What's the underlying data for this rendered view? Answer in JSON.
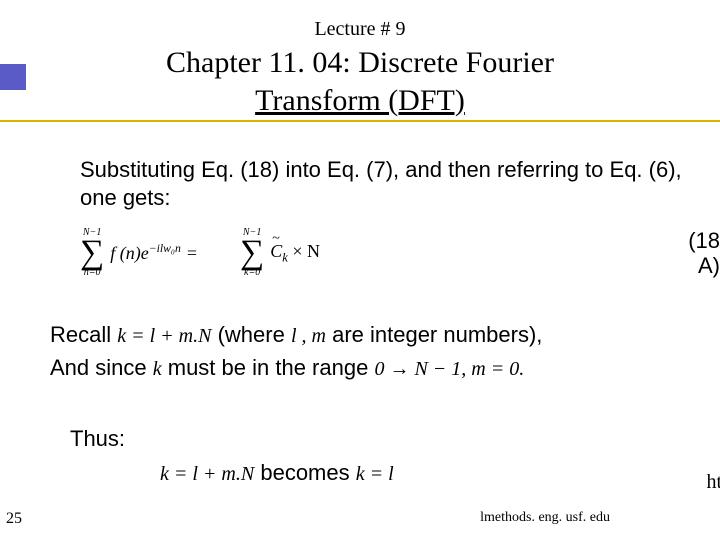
{
  "lecture": "Lecture # 9",
  "title_line1": "Chapter 11. 04: Discrete Fourier",
  "title_line2": "Transform (DFT)",
  "body1": "Substituting Eq. (18) into Eq. (7), and then referring to Eq. (6), one gets:",
  "eq": {
    "left_top": "N−1",
    "left_bot": "n=0",
    "left_term_a": "f (n)",
    "left_exp": "e",
    "left_sup": "−ilw₀n",
    "eq_sign": " = ",
    "right_top": "N−1",
    "right_bot": "k=0",
    "right_C": "C",
    "right_k": "k",
    "right_tail": " × N",
    "label_a": "(18",
    "label_b": "A)"
  },
  "rec": {
    "t1": "Recall ",
    "m1": "k = l + m.N",
    "t2": "    (where  ",
    "m2": "l , m",
    "t3": "  are integer numbers),",
    "t4": "And since ",
    "m3": "k",
    "t5": "  must be in the range   ",
    "m4": "0 → N − 1, m = 0."
  },
  "thus": "Thus:",
  "bec": {
    "m1": "k = l + m.N",
    "t1": "   becomes   ",
    "m2": "k = l"
  },
  "page": "25",
  "url": "lmethods. eng. usf. edu",
  "ht": "ht",
  "colors": {
    "accent": "#5b5bc7",
    "rule": "#dcb400",
    "bg": "#ffffff",
    "text": "#000000"
  }
}
